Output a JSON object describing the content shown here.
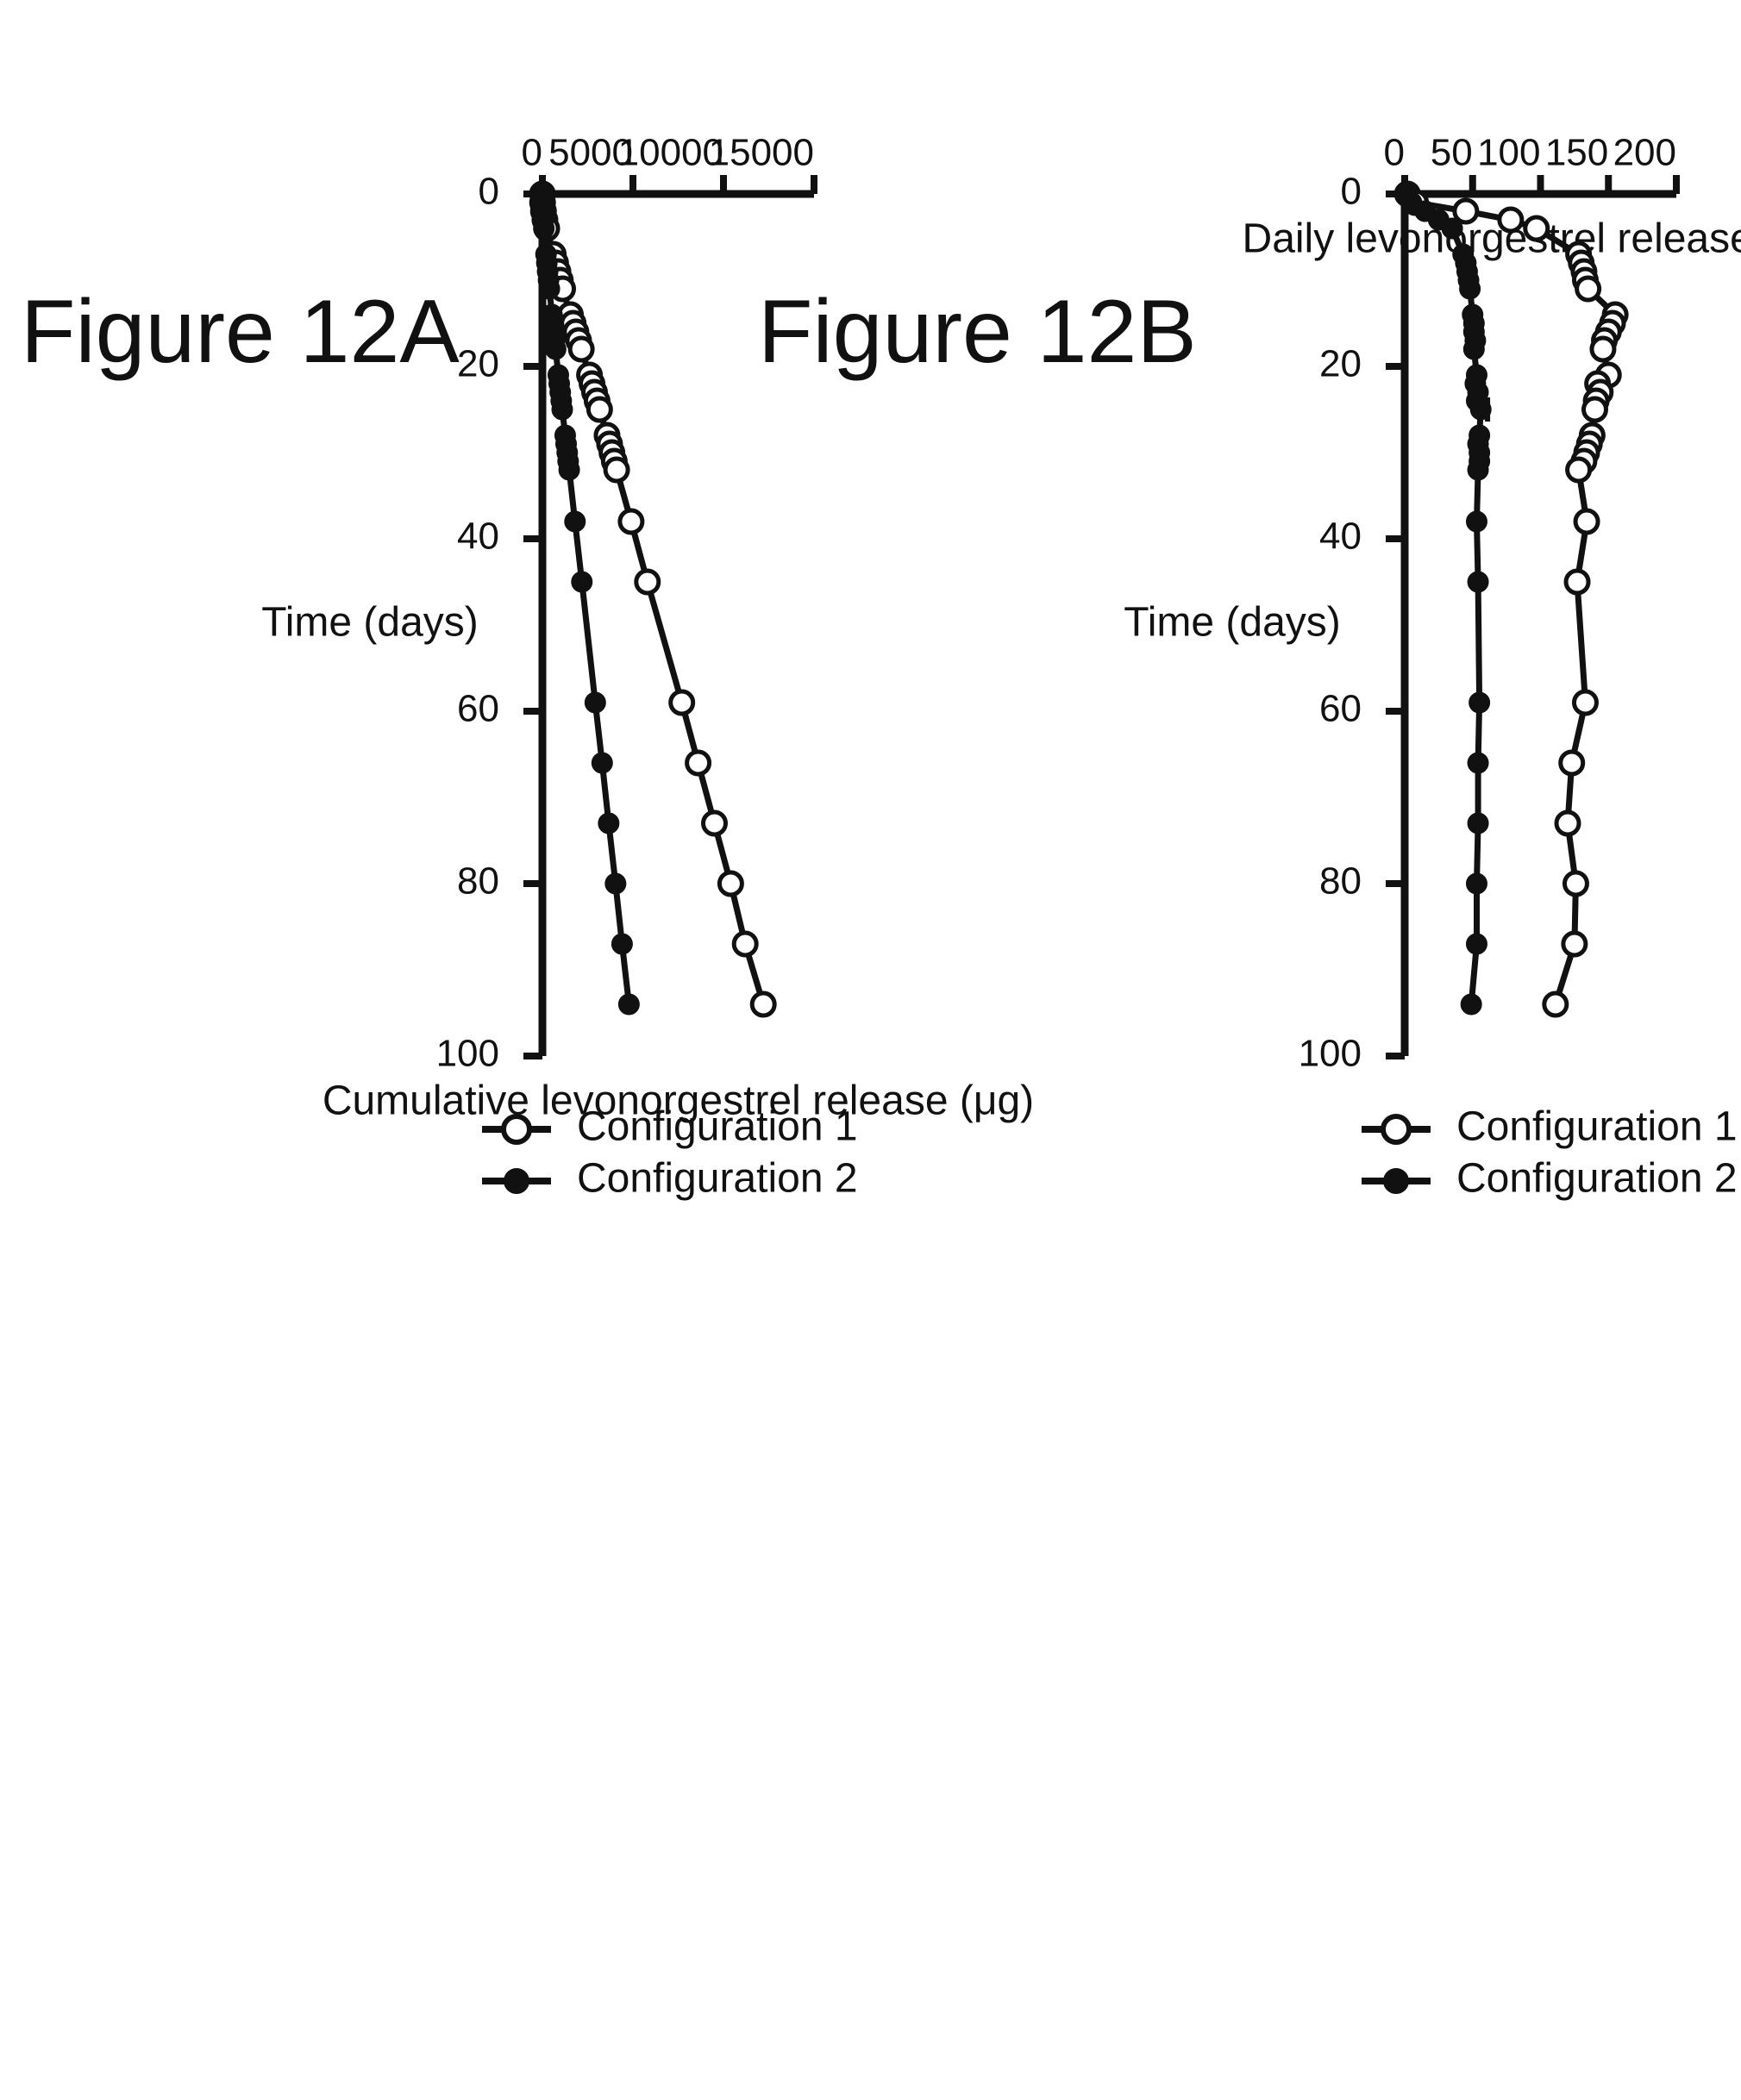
{
  "chart_data": [
    {
      "type": "line",
      "figure_label": "Figure 12A",
      "title": "",
      "xlabel": "Time (days)",
      "ylabel": "Daily levonorgestrel release (μg)",
      "xlim": [
        0,
        100
      ],
      "ylim": [
        0,
        200
      ],
      "xticks": [
        "0",
        "20",
        "40",
        "60",
        "80",
        "100"
      ],
      "yticks": [
        "0",
        "50",
        "100",
        "150",
        "200"
      ],
      "grid": false,
      "legend_position": "right",
      "series": [
        {
          "name": "Configuration 1",
          "marker": "open-circle",
          "x": [
            0,
            1,
            2,
            3,
            4,
            7,
            8,
            9,
            10,
            11,
            14,
            15,
            16,
            17,
            18,
            21,
            22,
            23,
            24,
            25,
            28,
            29,
            30,
            31,
            32,
            38,
            45,
            59,
            66,
            73,
            80,
            87,
            94
          ],
          "y": [
            2,
            8,
            45,
            78,
            97,
            128,
            130,
            132,
            133,
            135,
            155,
            153,
            150,
            147,
            146,
            150,
            142,
            144,
            141,
            140,
            138,
            136,
            134,
            132,
            128,
            134,
            127,
            133,
            123,
            120,
            126,
            125,
            111
          ]
        },
        {
          "name": "Configuration 2",
          "marker": "filled-circle",
          "x": [
            0,
            1,
            2,
            3,
            4,
            7,
            8,
            9,
            10,
            11,
            14,
            15,
            16,
            17,
            18,
            21,
            22,
            23,
            24,
            25,
            28,
            29,
            30,
            31,
            32,
            38,
            45,
            59,
            66,
            73,
            80,
            87,
            94
          ],
          "y": [
            1,
            5,
            15,
            25,
            35,
            43,
            45,
            46,
            47,
            48,
            50,
            51,
            51,
            52,
            51,
            53,
            52,
            54,
            53,
            56,
            55,
            54,
            55,
            55,
            54,
            53,
            54,
            55,
            54,
            54,
            53,
            53,
            49
          ]
        }
      ],
      "error_bar": {
        "series": "Configuration 2",
        "x": 25,
        "y": 56,
        "err": 5
      }
    },
    {
      "type": "line",
      "figure_label": "Figure 12B",
      "title": "",
      "xlabel": "Time (days)",
      "ylabel": "Cumulative levonorgestrel release (μg)",
      "xlim": [
        0,
        100
      ],
      "ylim": [
        0,
        15000
      ],
      "xticks": [
        "0",
        "20",
        "40",
        "60",
        "80",
        "100"
      ],
      "yticks": [
        "0",
        "5000",
        "10000",
        "15000"
      ],
      "grid": false,
      "legend_position": "right",
      "series": [
        {
          "name": "Configuration 1",
          "marker": "open-circle",
          "x": [
            0,
            1,
            2,
            3,
            4,
            7,
            8,
            9,
            10,
            11,
            14,
            15,
            16,
            17,
            18,
            21,
            22,
            23,
            24,
            25,
            28,
            29,
            30,
            31,
            32,
            38,
            45,
            59,
            66,
            73,
            80,
            87,
            94
          ],
          "y": [
            0,
            10,
            60,
            140,
            240,
            600,
            730,
            860,
            990,
            1120,
            1550,
            1700,
            1850,
            2000,
            2150,
            2600,
            2740,
            2880,
            3020,
            3160,
            3570,
            3710,
            3840,
            3970,
            4100,
            4900,
            5800,
            7700,
            8600,
            9500,
            10400,
            11200,
            12200
          ]
        },
        {
          "name": "Configuration 2",
          "marker": "filled-circle",
          "x": [
            0,
            1,
            2,
            3,
            4,
            7,
            8,
            9,
            10,
            11,
            14,
            15,
            16,
            17,
            18,
            21,
            22,
            23,
            24,
            25,
            28,
            29,
            30,
            31,
            32,
            38,
            45,
            59,
            66,
            73,
            80,
            87,
            94
          ],
          "y": [
            0,
            5,
            20,
            45,
            80,
            200,
            245,
            290,
            340,
            385,
            530,
            580,
            630,
            680,
            730,
            880,
            930,
            985,
            1040,
            1095,
            1260,
            1310,
            1370,
            1420,
            1480,
            1800,
            2180,
            2920,
            3300,
            3660,
            4040,
            4400,
            4780
          ]
        }
      ]
    }
  ]
}
